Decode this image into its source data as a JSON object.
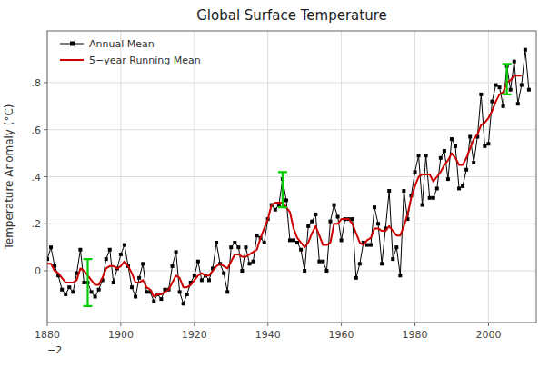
{
  "chart_data": {
    "type": "line",
    "title": "Global Surface Temperature",
    "ylabel": "Temperature Anomaly (°C)",
    "xlim": [
      1880,
      2013
    ],
    "ylim": [
      -0.22,
      1.02
    ],
    "xticks": [
      1880,
      1900,
      1920,
      1940,
      1960,
      1980,
      2000
    ],
    "yticks": [
      0,
      {
        "value": 0.2,
        "label": ".2"
      },
      {
        "value": 0.4,
        "label": ".4"
      },
      {
        "value": 0.6,
        "label": ".6"
      },
      {
        "value": 0.8,
        "label": ".8"
      }
    ],
    "grid": true,
    "legend": "upper left",
    "background_color": "#ffffff",
    "x": [
      1880,
      1881,
      1882,
      1883,
      1884,
      1885,
      1886,
      1887,
      1888,
      1889,
      1890,
      1891,
      1892,
      1893,
      1894,
      1895,
      1896,
      1897,
      1898,
      1899,
      1900,
      1901,
      1902,
      1903,
      1904,
      1905,
      1906,
      1907,
      1908,
      1909,
      1910,
      1911,
      1912,
      1913,
      1914,
      1915,
      1916,
      1917,
      1918,
      1919,
      1920,
      1921,
      1922,
      1923,
      1924,
      1925,
      1926,
      1927,
      1928,
      1929,
      1930,
      1931,
      1932,
      1933,
      1934,
      1935,
      1936,
      1937,
      1938,
      1939,
      1940,
      1941,
      1942,
      1943,
      1944,
      1945,
      1946,
      1947,
      1948,
      1949,
      1950,
      1951,
      1952,
      1953,
      1954,
      1955,
      1956,
      1957,
      1958,
      1959,
      1960,
      1961,
      1962,
      1963,
      1964,
      1965,
      1966,
      1967,
      1968,
      1969,
      1970,
      1971,
      1972,
      1973,
      1974,
      1975,
      1976,
      1977,
      1978,
      1979,
      1980,
      1981,
      1982,
      1983,
      1984,
      1985,
      1986,
      1987,
      1988,
      1989,
      1990,
      1991,
      1992,
      1993,
      1994,
      1995,
      1996,
      1997,
      1998,
      1999,
      2000,
      2001,
      2002,
      2003,
      2004,
      2005,
      2006,
      2007,
      2008,
      2009,
      2010,
      2011
    ],
    "series": [
      {
        "name": "Annual Mean",
        "color": "#000000",
        "marker": "square",
        "line_style": "solid",
        "values": [
          0.05,
          0.1,
          0.02,
          -0.02,
          -0.08,
          -0.1,
          -0.07,
          -0.09,
          -0.01,
          0.09,
          -0.05,
          -0.05,
          -0.09,
          -0.11,
          -0.08,
          -0.04,
          0.05,
          0.09,
          -0.05,
          0.01,
          0.07,
          0.11,
          0.02,
          -0.07,
          -0.11,
          -0.03,
          0.03,
          -0.09,
          -0.09,
          -0.13,
          -0.1,
          -0.12,
          -0.08,
          -0.08,
          0.02,
          0.08,
          -0.09,
          -0.14,
          -0.1,
          -0.05,
          -0.02,
          0.04,
          -0.04,
          -0.02,
          -0.04,
          0.01,
          0.12,
          0.03,
          -0.01,
          -0.09,
          0.1,
          0.12,
          0.1,
          0.0,
          0.1,
          0.03,
          0.04,
          0.15,
          0.14,
          0.12,
          0.22,
          0.28,
          0.26,
          0.28,
          0.39,
          0.3,
          0.13,
          0.13,
          0.12,
          0.09,
          0.0,
          0.19,
          0.21,
          0.24,
          0.04,
          0.04,
          0.0,
          0.21,
          0.28,
          0.23,
          0.13,
          0.22,
          0.22,
          0.22,
          -0.03,
          0.03,
          0.12,
          0.11,
          0.11,
          0.27,
          0.2,
          0.03,
          0.18,
          0.34,
          0.05,
          0.1,
          -0.02,
          0.34,
          0.22,
          0.32,
          0.42,
          0.49,
          0.28,
          0.49,
          0.31,
          0.31,
          0.35,
          0.48,
          0.51,
          0.39,
          0.56,
          0.53,
          0.35,
          0.36,
          0.43,
          0.57,
          0.46,
          0.57,
          0.75,
          0.53,
          0.54,
          0.72,
          0.79,
          0.78,
          0.7,
          0.87,
          0.77,
          0.89,
          0.71,
          0.79,
          0.94,
          0.77
        ]
      },
      {
        "name": "5−year Running Mean",
        "color": "#cc0000",
        "marker": "none",
        "line_style": "solid",
        "values": [
          0.03,
          0.03,
          0.0,
          -0.01,
          -0.03,
          -0.05,
          -0.05,
          -0.05,
          -0.04,
          0.01,
          0.0,
          -0.02,
          -0.04,
          -0.06,
          -0.06,
          -0.03,
          0.01,
          0.02,
          0.02,
          0.01,
          0.02,
          0.04,
          0.02,
          -0.01,
          -0.05,
          -0.05,
          -0.04,
          -0.07,
          -0.08,
          -0.11,
          -0.1,
          -0.1,
          -0.09,
          -0.08,
          -0.05,
          -0.02,
          -0.03,
          -0.07,
          -0.07,
          -0.06,
          -0.04,
          -0.02,
          -0.01,
          -0.02,
          -0.02,
          0.0,
          0.02,
          0.03,
          0.02,
          0.01,
          0.04,
          0.07,
          0.07,
          0.06,
          0.06,
          0.07,
          0.08,
          0.09,
          0.14,
          0.18,
          0.22,
          0.28,
          0.29,
          0.29,
          0.29,
          0.27,
          0.25,
          0.18,
          0.14,
          0.12,
          0.1,
          0.12,
          0.16,
          0.19,
          0.15,
          0.11,
          0.11,
          0.12,
          0.2,
          0.2,
          0.22,
          0.22,
          0.22,
          0.2,
          0.16,
          0.12,
          0.11,
          0.13,
          0.14,
          0.18,
          0.18,
          0.17,
          0.17,
          0.19,
          0.17,
          0.15,
          0.15,
          0.19,
          0.24,
          0.31,
          0.36,
          0.4,
          0.41,
          0.41,
          0.41,
          0.38,
          0.4,
          0.42,
          0.45,
          0.47,
          0.5,
          0.48,
          0.45,
          0.45,
          0.48,
          0.52,
          0.56,
          0.58,
          0.62,
          0.63,
          0.65,
          0.68,
          0.72,
          0.75,
          0.76,
          0.8,
          0.81,
          0.83,
          0.83,
          0.83,
          null,
          null
        ]
      }
    ],
    "error_bars": {
      "color": "#00cc00",
      "x": [
        1891,
        1944,
        2005
      ],
      "low": [
        -0.15,
        0.27,
        0.75
      ],
      "high": [
        0.05,
        0.42,
        0.88
      ]
    },
    "annotations": [
      {
        "text": "−2",
        "x": 1880,
        "y": -0.22
      }
    ]
  }
}
